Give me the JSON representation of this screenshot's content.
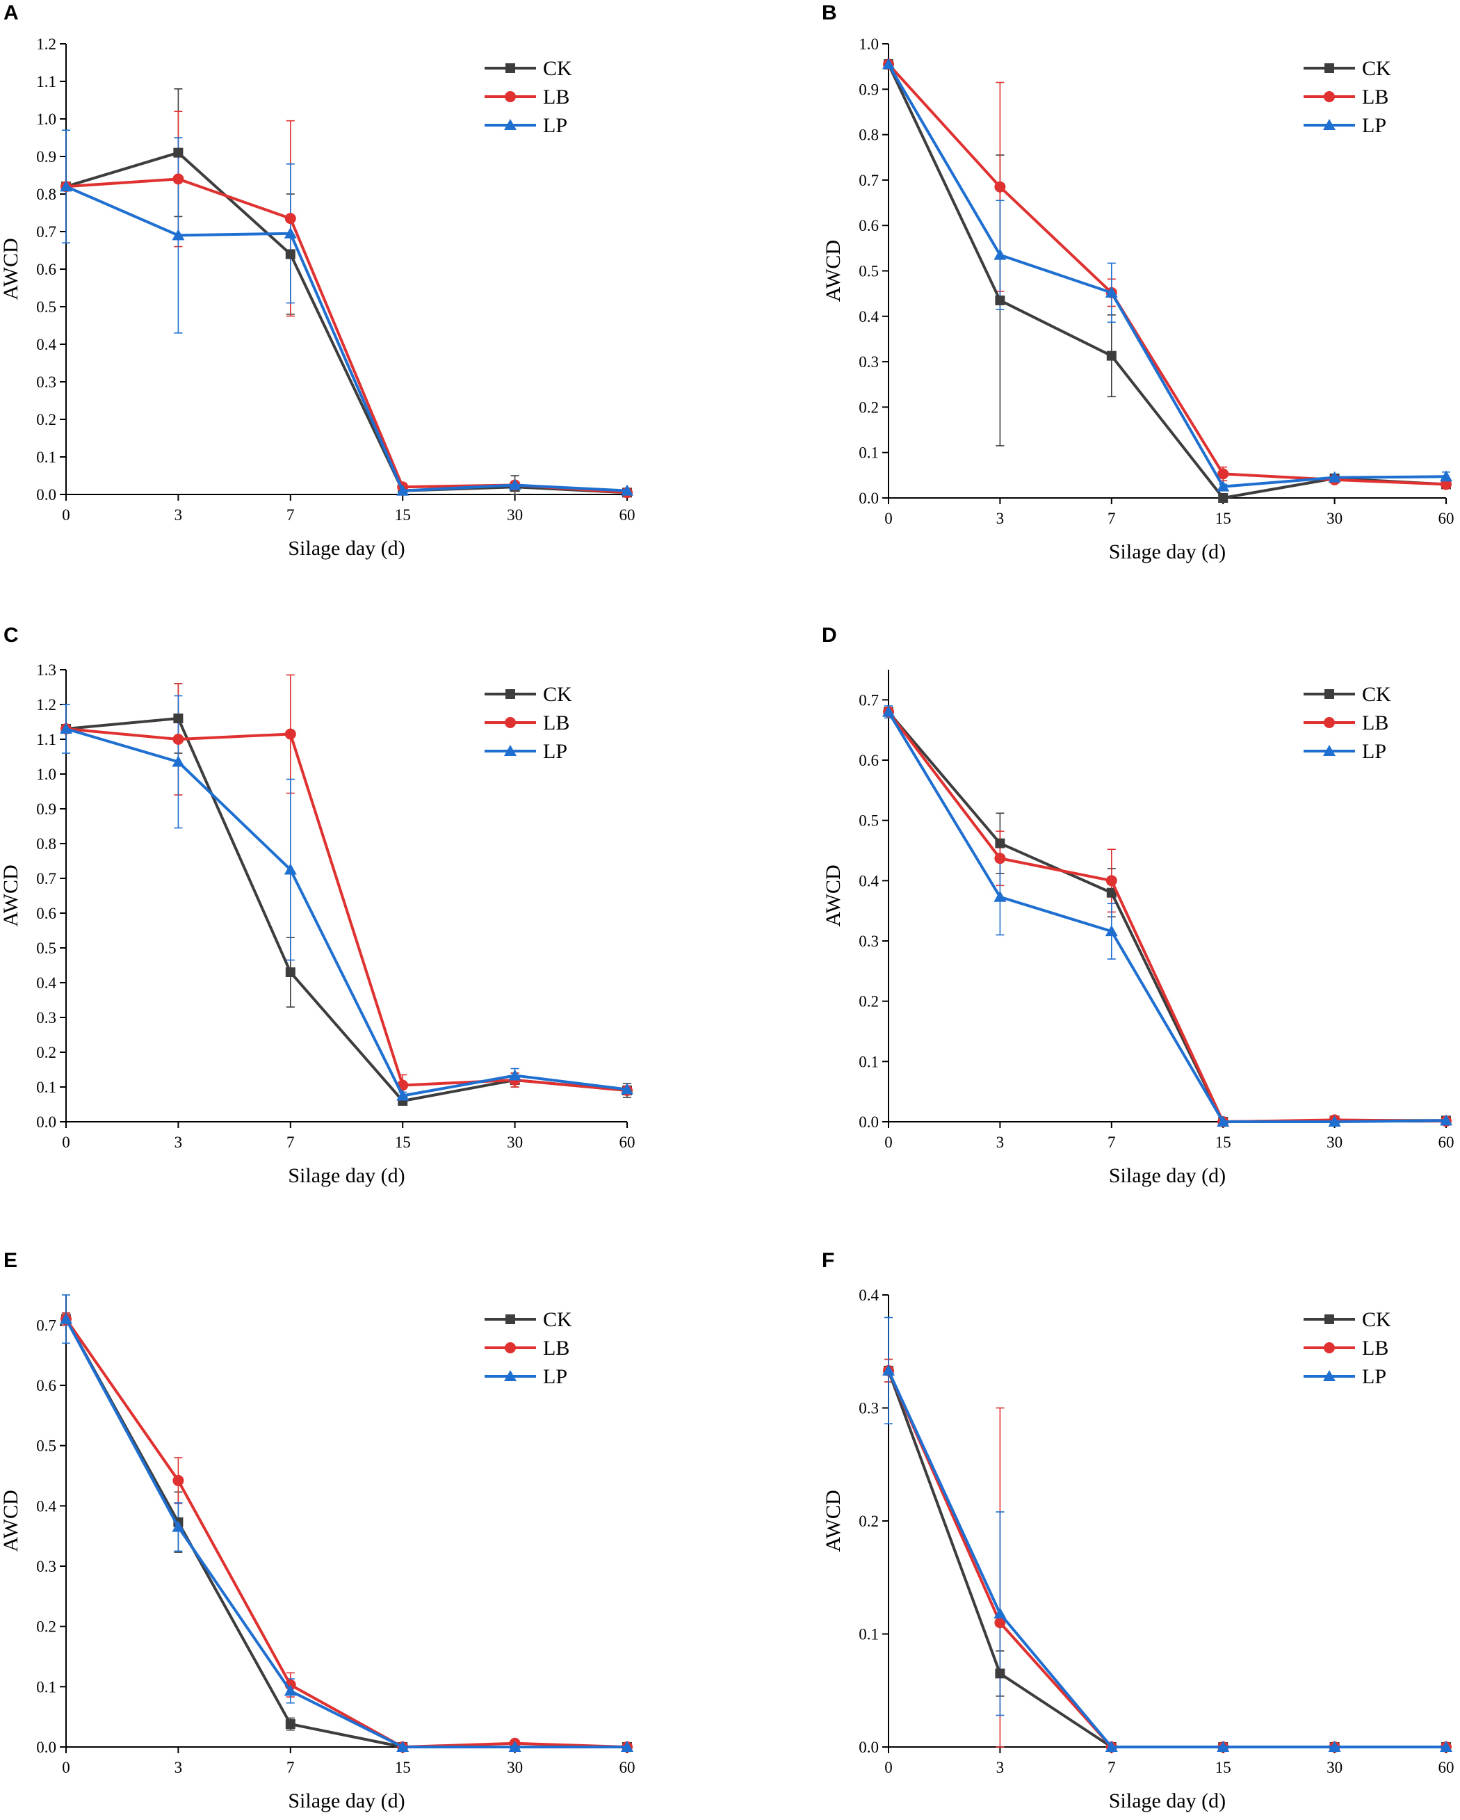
{
  "colors": {
    "CK": "#3d3d3d",
    "LB": "#e03131",
    "LP": "#1e6fd0"
  },
  "chart_data": [
    {
      "panel": "A",
      "type": "line",
      "x": [
        "0",
        "3",
        "7",
        "15",
        "30",
        "60"
      ],
      "xlabel": "Silage day (d)",
      "ylabel": "AWCD",
      "ylim": [
        0,
        1.2
      ],
      "yticks": [
        "0.0",
        "0.1",
        "0.2",
        "0.3",
        "0.4",
        "0.5",
        "0.6",
        "0.7",
        "0.8",
        "0.9",
        "1.0",
        "1.1",
        "1.2"
      ],
      "legend": [
        "CK",
        "LB",
        "LP"
      ],
      "series": [
        {
          "name": "CK",
          "marker": "square",
          "values": [
            0.82,
            0.91,
            0.64,
            0.01,
            0.02,
            0.005
          ],
          "errors": [
            0.0,
            0.17,
            0.16,
            0.01,
            0.03,
            0.005
          ]
        },
        {
          "name": "LB",
          "marker": "circle",
          "values": [
            0.82,
            0.84,
            0.735,
            0.02,
            0.025,
            0.005
          ],
          "errors": [
            0.0,
            0.18,
            0.26,
            0.01,
            0.01,
            0.005
          ]
        },
        {
          "name": "LP",
          "marker": "triangle",
          "values": [
            0.82,
            0.69,
            0.695,
            0.01,
            0.025,
            0.01
          ],
          "errors": [
            0.15,
            0.26,
            0.185,
            0.01,
            0.01,
            0.005
          ]
        }
      ]
    },
    {
      "panel": "B",
      "type": "line",
      "x": [
        "0",
        "3",
        "7",
        "15",
        "30",
        "60"
      ],
      "xlabel": "Silage day (d)",
      "ylabel": "AWCD",
      "ylim": [
        0,
        1.0
      ],
      "yticks": [
        "0.0",
        "0.1",
        "0.2",
        "0.3",
        "0.4",
        "0.5",
        "0.6",
        "0.7",
        "0.8",
        "0.9",
        "1.0"
      ],
      "legend": [
        "CK",
        "LB",
        "LP"
      ],
      "series": [
        {
          "name": "CK",
          "marker": "square",
          "values": [
            0.955,
            0.435,
            0.313,
            0.0,
            0.043,
            0.03
          ],
          "errors": [
            0.01,
            0.32,
            0.09,
            0.005,
            0.005,
            0.005
          ]
        },
        {
          "name": "LB",
          "marker": "circle",
          "values": [
            0.955,
            0.685,
            0.452,
            0.053,
            0.04,
            0.03
          ],
          "errors": [
            0.01,
            0.23,
            0.03,
            0.015,
            0.005,
            0.005
          ]
        },
        {
          "name": "LP",
          "marker": "triangle",
          "values": [
            0.955,
            0.535,
            0.452,
            0.025,
            0.045,
            0.047
          ],
          "errors": [
            0.01,
            0.12,
            0.065,
            0.005,
            0.005,
            0.01
          ]
        }
      ]
    },
    {
      "panel": "C",
      "type": "line",
      "x": [
        "0",
        "3",
        "7",
        "15",
        "30",
        "60"
      ],
      "xlabel": "Silage day (d)",
      "ylabel": "AWCD",
      "ylim": [
        0,
        1.3
      ],
      "yticks": [
        "0.0",
        "0.1",
        "0.2",
        "0.3",
        "0.4",
        "0.5",
        "0.6",
        "0.7",
        "0.8",
        "0.9",
        "1.0",
        "1.1",
        "1.2",
        "1.3"
      ],
      "legend": [
        "CK",
        "LB",
        "LP"
      ],
      "series": [
        {
          "name": "CK",
          "marker": "square",
          "values": [
            1.13,
            1.16,
            0.43,
            0.06,
            0.12,
            0.09
          ],
          "errors": [
            0.0,
            0.1,
            0.1,
            0.01,
            0.02,
            0.02
          ]
        },
        {
          "name": "LB",
          "marker": "circle",
          "values": [
            1.13,
            1.1,
            1.115,
            0.105,
            0.12,
            0.09
          ],
          "errors": [
            0.0,
            0.16,
            0.17,
            0.03,
            0.02,
            0.01
          ]
        },
        {
          "name": "LP",
          "marker": "triangle",
          "values": [
            1.13,
            1.035,
            0.725,
            0.075,
            0.133,
            0.093
          ],
          "errors": [
            0.07,
            0.19,
            0.26,
            0.01,
            0.02,
            0.01
          ]
        }
      ]
    },
    {
      "panel": "D",
      "type": "line",
      "x": [
        "0",
        "3",
        "7",
        "15",
        "30",
        "60"
      ],
      "xlabel": "Silage day (d)",
      "ylabel": "AWCD",
      "ylim": [
        0,
        0.75
      ],
      "yticks": [
        "0.0",
        "0.1",
        "0.2",
        "0.3",
        "0.4",
        "0.5",
        "0.6",
        "0.7"
      ],
      "legend": [
        "CK",
        "LB",
        "LP"
      ],
      "series": [
        {
          "name": "CK",
          "marker": "square",
          "values": [
            0.68,
            0.462,
            0.38,
            0.0,
            0.002,
            0.002
          ],
          "errors": [
            0.005,
            0.05,
            0.04,
            0.002,
            0.002,
            0.002
          ]
        },
        {
          "name": "LB",
          "marker": "circle",
          "values": [
            0.68,
            0.437,
            0.4,
            0.0,
            0.003,
            0.001
          ],
          "errors": [
            0.005,
            0.045,
            0.052,
            0.002,
            0.002,
            0.002
          ]
        },
        {
          "name": "LP",
          "marker": "triangle",
          "values": [
            0.68,
            0.373,
            0.316,
            0.0,
            0.0,
            0.002
          ],
          "errors": [
            0.01,
            0.063,
            0.046,
            0.002,
            0.002,
            0.002
          ]
        }
      ]
    },
    {
      "panel": "E",
      "type": "line",
      "x": [
        "0",
        "3",
        "7",
        "15",
        "30",
        "60"
      ],
      "xlabel": "Silage day (d)",
      "ylabel": "AWCD",
      "ylim": [
        0,
        0.75
      ],
      "yticks": [
        "0.0",
        "0.1",
        "0.2",
        "0.3",
        "0.4",
        "0.5",
        "0.6",
        "0.7"
      ],
      "legend": [
        "CK",
        "LB",
        "LP"
      ],
      "series": [
        {
          "name": "CK",
          "marker": "square",
          "values": [
            0.71,
            0.373,
            0.038,
            0.0,
            0.0,
            0.0
          ],
          "errors": [
            0.01,
            0.05,
            0.01,
            0.002,
            0.002,
            0.002
          ]
        },
        {
          "name": "LB",
          "marker": "circle",
          "values": [
            0.71,
            0.442,
            0.103,
            0.0,
            0.006,
            0.0
          ],
          "errors": [
            0.01,
            0.038,
            0.02,
            0.002,
            0.005,
            0.002
          ]
        },
        {
          "name": "LP",
          "marker": "triangle",
          "values": [
            0.71,
            0.365,
            0.093,
            0.0,
            0.0,
            0.0
          ],
          "errors": [
            0.04,
            0.04,
            0.02,
            0.002,
            0.002,
            0.002
          ]
        }
      ]
    },
    {
      "panel": "F",
      "type": "line",
      "x": [
        "0",
        "3",
        "7",
        "15",
        "30",
        "60"
      ],
      "xlabel": "Silage day (d)",
      "ylabel": "AWCD",
      "ylim": [
        0,
        0.4
      ],
      "yticks": [
        "0.0",
        "0.1",
        "0.2",
        "0.3",
        "0.4"
      ],
      "legend": [
        "CK",
        "LB",
        "LP"
      ],
      "series": [
        {
          "name": "CK",
          "marker": "square",
          "values": [
            0.333,
            0.065,
            0.0,
            0.0,
            0.0,
            0.0
          ],
          "errors": [
            0.01,
            0.02,
            0.001,
            0.001,
            0.001,
            0.001
          ]
        },
        {
          "name": "LB",
          "marker": "circle",
          "values": [
            0.333,
            0.11,
            0.0,
            0.0,
            0.0,
            0.0
          ],
          "errors": [
            0.01,
            0.19,
            0.001,
            0.001,
            0.001,
            0.001
          ]
        },
        {
          "name": "LP",
          "marker": "triangle",
          "values": [
            0.333,
            0.118,
            0.0,
            0.0,
            0.0,
            0.0
          ],
          "errors": [
            0.047,
            0.09,
            0.001,
            0.001,
            0.001,
            0.001
          ]
        }
      ]
    }
  ]
}
